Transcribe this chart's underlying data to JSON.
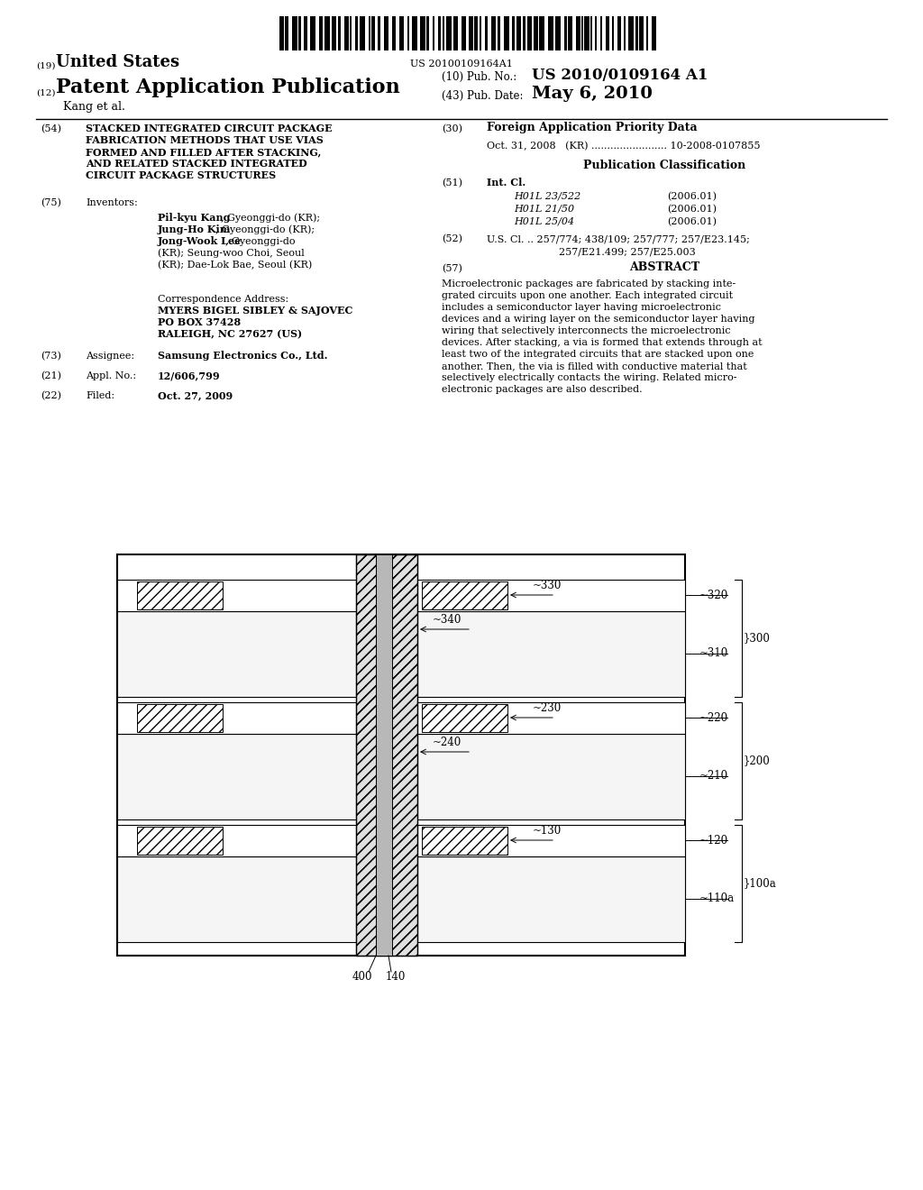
{
  "background_color": "#ffffff",
  "barcode_text": "US 20100109164A1",
  "header_19": "(19) United States",
  "header_12": "(12) Patent Application Publication",
  "pub_no_label": "(10) Pub. No.:",
  "pub_no_value": "US 2010/0109164 A1",
  "pub_date_label": "(43) Pub. Date:",
  "pub_date_value": "May 6, 2010",
  "author": "Kang et al.",
  "field54_label": "(54)",
  "field54_lines": [
    "STACKED INTEGRATED CIRCUIT PACKAGE",
    "FABRICATION METHODS THAT USE VIAS",
    "FORMED AND FILLED AFTER STACKING,",
    "AND RELATED STACKED INTEGRATED",
    "CIRCUIT PACKAGE STRUCTURES"
  ],
  "field75_label": "(75)",
  "field75_title": "Inventors:",
  "inv_lines_bold": [
    "Pil-kyu Kang",
    "Jung-Ho Kim",
    "Jong-Wook Lee",
    "",
    ""
  ],
  "inv_lines_normal": [
    ", Gyeonggi-do (KR);",
    ", Gyeonggi-do (KR);",
    ", Gyeonggi-do",
    "(KR); Seung-woo Choi, Seoul",
    "(KR); Dae-Lok Bae, Seoul (KR)"
  ],
  "corr_address_lines": [
    "Correspondence Address:",
    "MYERS BIGEL SIBLEY & SAJOVEC",
    "PO BOX 37428",
    "RALEIGH, NC 27627 (US)"
  ],
  "corr_bold": [
    false,
    true,
    true,
    true
  ],
  "field73_label": "(73)",
  "field73_title": "Assignee:",
  "field73_text": "Samsung Electronics Co., Ltd.",
  "field21_label": "(21)",
  "field21_title": "Appl. No.:",
  "field21_text": "12/606,799",
  "field22_label": "(22)",
  "field22_title": "Filed:",
  "field22_text": "Oct. 27, 2009",
  "field30_label": "(30)",
  "field30_title": "Foreign Application Priority Data",
  "field30_line": "Oct. 31, 2008   (KR) ........................ 10-2008-0107855",
  "pub_class_title": "Publication Classification",
  "field51_label": "(51)",
  "field51_title": "Int. Cl.",
  "field51_items": [
    [
      "H01L 23/522",
      "(2006.01)"
    ],
    [
      "H01L 21/50",
      "(2006.01)"
    ],
    [
      "H01L 25/04",
      "(2006.01)"
    ]
  ],
  "field52_label": "(52)",
  "field52_line1": "U.S. Cl. .. 257/774; 438/109; 257/777; 257/E23.145;",
  "field52_line2": "257/E21.499; 257/E25.003",
  "field57_label": "(57)",
  "field57_title": "ABSTRACT",
  "abstract_lines": [
    "Microelectronic packages are fabricated by stacking inte-",
    "grated circuits upon one another. Each integrated circuit",
    "includes a semiconductor layer having microelectronic",
    "devices and a wiring layer on the semiconductor layer having",
    "wiring that selectively interconnects the microelectronic",
    "devices. After stacking, a via is formed that extends through at",
    "least two of the integrated circuits that are stacked upon one",
    "another. Then, the via is filled with conductive material that",
    "selectively electrically contacts the wiring. Related micro-",
    "electronic packages are also described."
  ]
}
